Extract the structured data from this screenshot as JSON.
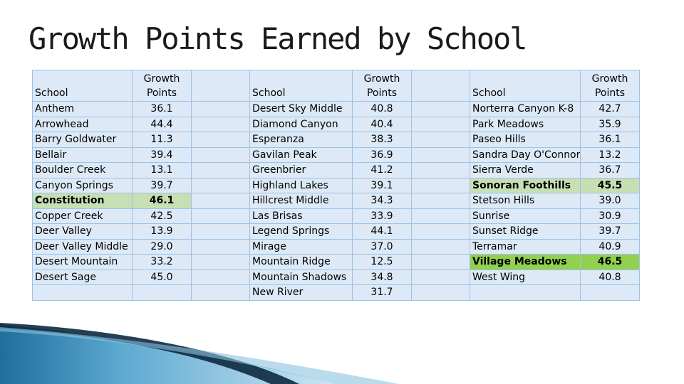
{
  "title": "Growth Points Earned by School",
  "headers": {
    "school": "School",
    "points_line1": "Growth",
    "points_line2": "Points"
  },
  "colors": {
    "cell": "#dde9f6",
    "border": "#9cc2e5",
    "highlight_light": "#c6e0b4",
    "highlight_dark": "#92d050"
  },
  "rows": [
    {
      "c1": {
        "school": "Anthem",
        "points": "36.1"
      },
      "c2": {
        "school": "Desert Sky Middle",
        "points": "40.8"
      },
      "c3": {
        "school": "Norterra Canyon K-8",
        "points": "42.7"
      }
    },
    {
      "c1": {
        "school": "Arrowhead",
        "points": "44.4"
      },
      "c2": {
        "school": "Diamond Canyon",
        "points": "40.4"
      },
      "c3": {
        "school": "Park Meadows",
        "points": "35.9"
      }
    },
    {
      "c1": {
        "school": "Barry Goldwater",
        "points": "11.3"
      },
      "c2": {
        "school": "Esperanza",
        "points": "38.3"
      },
      "c3": {
        "school": "Paseo Hills",
        "points": "36.1"
      }
    },
    {
      "c1": {
        "school": "Bellair",
        "points": "39.4"
      },
      "c2": {
        "school": "Gavilan Peak",
        "points": "36.9"
      },
      "c3": {
        "school": "Sandra Day O'Connor",
        "points": "13.2"
      }
    },
    {
      "c1": {
        "school": "Boulder Creek",
        "points": "13.1"
      },
      "c2": {
        "school": "Greenbrier",
        "points": "41.2"
      },
      "c3": {
        "school": "Sierra Verde",
        "points": "36.7"
      }
    },
    {
      "c1": {
        "school": "Canyon Springs",
        "points": "39.7"
      },
      "c2": {
        "school": "Highland Lakes",
        "points": "39.1"
      },
      "c3": {
        "school": "Sonoran Foothills",
        "points": "45.5"
      }
    },
    {
      "c1": {
        "school": "Constitution",
        "points": "46.1"
      },
      "c2": {
        "school": "Hillcrest Middle",
        "points": "34.3"
      },
      "c3": {
        "school": "Stetson Hills",
        "points": "39.0"
      }
    },
    {
      "c1": {
        "school": "Copper Creek",
        "points": "42.5"
      },
      "c2": {
        "school": "Las Brisas",
        "points": "33.9"
      },
      "c3": {
        "school": "Sunrise",
        "points": "30.9"
      }
    },
    {
      "c1": {
        "school": "Deer Valley",
        "points": "13.9"
      },
      "c2": {
        "school": "Legend Springs",
        "points": "44.1"
      },
      "c3": {
        "school": "Sunset Ridge",
        "points": "39.7"
      }
    },
    {
      "c1": {
        "school": "Deer Valley Middle",
        "points": "29.0"
      },
      "c2": {
        "school": "Mirage",
        "points": "37.0"
      },
      "c3": {
        "school": "Terramar",
        "points": "40.9"
      }
    },
    {
      "c1": {
        "school": "Desert Mountain",
        "points": "33.2"
      },
      "c2": {
        "school": "Mountain Ridge",
        "points": "12.5"
      },
      "c3": {
        "school": "Village Meadows",
        "points": "46.5"
      }
    },
    {
      "c1": {
        "school": "Desert Sage",
        "points": "45.0"
      },
      "c2": {
        "school": "Mountain Shadows",
        "points": "34.8"
      },
      "c3": {
        "school": "West Wing",
        "points": "40.8"
      }
    },
    {
      "c1": {
        "school": "",
        "points": ""
      },
      "c2": {
        "school": "New River",
        "points": "31.7"
      },
      "c3": {
        "school": "",
        "points": ""
      }
    }
  ]
}
